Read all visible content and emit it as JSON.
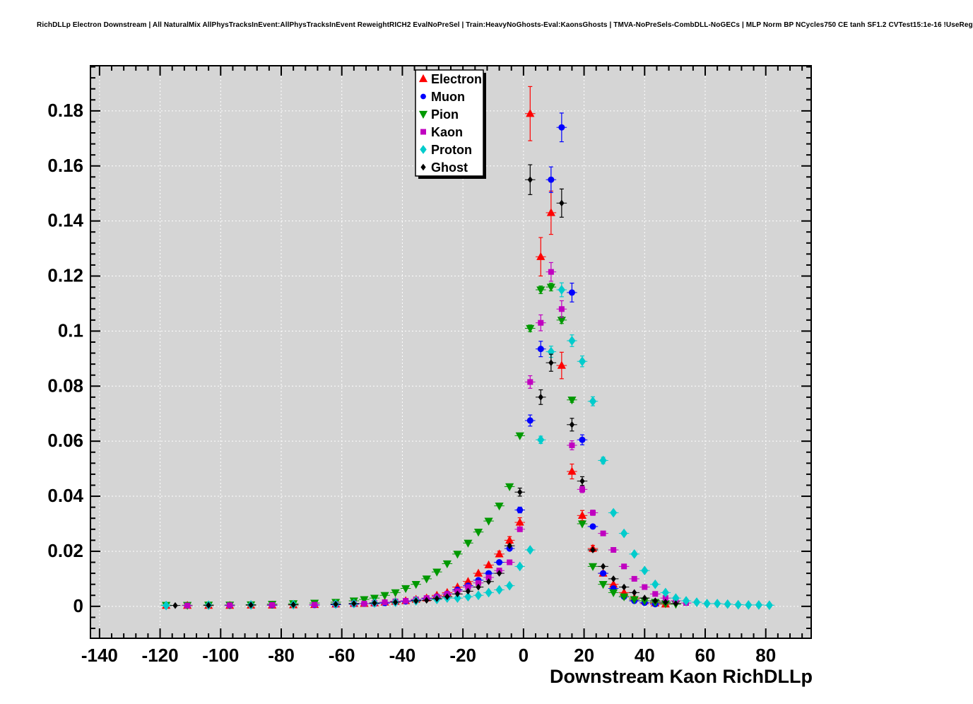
{
  "header": {
    "title": "RichDLLp Electron Downstream | All NaturalMix AllPhysTracksInEvent:AllPhysTracksInEvent ReweightRICH2 EvalNoPreSel | Train:HeavyNoGhosts-Eval:KaonsGhosts | TMVA-NoPreSels-CombDLL-NoGECs | MLP Norm BP NCycles750 CE tanh SF1.2 CVTest15:1e-16 !UseReg"
  },
  "chart_data": {
    "type": "scatter",
    "title": "",
    "xlabel": "Downstream Kaon RichDLLp",
    "ylabel": "",
    "xlim": [
      -143,
      95
    ],
    "ylim": [
      -0.0116,
      0.1964
    ],
    "x_tick_values": [
      -140,
      -120,
      -100,
      -80,
      -60,
      -40,
      -20,
      0,
      20,
      40,
      60,
      80
    ],
    "x_tick_labels": [
      "-140",
      "-120",
      "-100",
      "-80",
      "-60",
      "-40",
      "-20",
      "0",
      "20",
      "40",
      "60",
      "80"
    ],
    "y_tick_values": [
      0,
      0.02,
      0.04,
      0.06,
      0.08,
      0.1,
      0.12,
      0.14,
      0.16,
      0.18
    ],
    "y_tick_labels": [
      "0",
      "0.02",
      "0.04",
      "0.06",
      "0.08",
      "0.1",
      "0.12",
      "0.14",
      "0.16",
      "0.18"
    ],
    "x_minor_step": 4,
    "y_minor_step": 0.004,
    "grid": true,
    "plot_bg": "#d5d5d5",
    "grid_color": "#ffffff",
    "frame_color": "#000000",
    "legend": {
      "position": "top-center"
    },
    "series": [
      {
        "name": "Electron",
        "color": "#ff0000",
        "marker": "triangle-up",
        "marker_size": 5.5,
        "error_frac": 0.055,
        "points": [
          [
            -118,
            0.0003
          ],
          [
            -111,
            0.0003
          ],
          [
            -104,
            0.0003
          ],
          [
            -97,
            0.0003
          ],
          [
            -90,
            0.0004
          ],
          [
            -83,
            0.0004
          ],
          [
            -76,
            0.0005
          ],
          [
            -69,
            0.0006
          ],
          [
            -62,
            0.0008
          ],
          [
            -56,
            0.001
          ],
          [
            -52.6,
            0.001
          ],
          [
            -49.2,
            0.0012
          ],
          [
            -45.8,
            0.0015
          ],
          [
            -42.3,
            0.0018
          ],
          [
            -38.9,
            0.002
          ],
          [
            -35.5,
            0.0025
          ],
          [
            -32,
            0.003
          ],
          [
            -28.6,
            0.004
          ],
          [
            -25.2,
            0.005
          ],
          [
            -21.8,
            0.007
          ],
          [
            -18.3,
            0.009
          ],
          [
            -14.9,
            0.012
          ],
          [
            -11.5,
            0.015
          ],
          [
            -8,
            0.019
          ],
          [
            -4.6,
            0.024
          ],
          [
            -1.2,
            0.0305
          ],
          [
            2.2,
            0.179
          ],
          [
            5.7,
            0.127
          ],
          [
            9.1,
            0.143
          ],
          [
            12.6,
            0.0875
          ],
          [
            16,
            0.049
          ],
          [
            19.4,
            0.033
          ],
          [
            22.9,
            0.021
          ],
          [
            26.3,
            0.012
          ],
          [
            29.7,
            0.008
          ],
          [
            33.2,
            0.005
          ],
          [
            36.6,
            0.003
          ],
          [
            40,
            0.002
          ],
          [
            43.5,
            0.0012
          ],
          [
            46.9,
            0.0008
          ]
        ]
      },
      {
        "name": "Muon",
        "color": "#0000ff",
        "marker": "circle",
        "marker_size": 6.5,
        "error_frac": 0.03,
        "points": [
          [
            -111,
            0.0003
          ],
          [
            -97,
            0.0003
          ],
          [
            -83,
            0.0004
          ],
          [
            -69,
            0.0005
          ],
          [
            -62,
            0.0006
          ],
          [
            -56,
            0.0008
          ],
          [
            -52.6,
            0.001
          ],
          [
            -49.2,
            0.001
          ],
          [
            -45.8,
            0.0012
          ],
          [
            -42.3,
            0.0015
          ],
          [
            -38.9,
            0.0018
          ],
          [
            -35.5,
            0.0022
          ],
          [
            -32,
            0.0028
          ],
          [
            -28.6,
            0.0035
          ],
          [
            -25.2,
            0.0045
          ],
          [
            -21.8,
            0.006
          ],
          [
            -18.3,
            0.0075
          ],
          [
            -14.9,
            0.0095
          ],
          [
            -11.5,
            0.012
          ],
          [
            -8,
            0.016
          ],
          [
            -4.6,
            0.021
          ],
          [
            -1.2,
            0.035
          ],
          [
            2.2,
            0.0675
          ],
          [
            5.7,
            0.0935
          ],
          [
            9.1,
            0.155
          ],
          [
            12.6,
            0.174
          ],
          [
            16,
            0.114
          ],
          [
            19.4,
            0.0605
          ],
          [
            22.9,
            0.029
          ],
          [
            26.3,
            0.012
          ],
          [
            29.7,
            0.0065
          ],
          [
            33.2,
            0.0035
          ],
          [
            36.6,
            0.002
          ],
          [
            40,
            0.0013
          ],
          [
            43.5,
            0.0008
          ]
        ]
      },
      {
        "name": "Pion",
        "color": "#009900",
        "marker": "triangle-down",
        "marker_size": 5.5,
        "error_frac": 0.012,
        "points": [
          [
            -118,
            0.0004
          ],
          [
            -111,
            0.0004
          ],
          [
            -104,
            0.0005
          ],
          [
            -97,
            0.0005
          ],
          [
            -90,
            0.0006
          ],
          [
            -83,
            0.0008
          ],
          [
            -76,
            0.001
          ],
          [
            -69,
            0.0012
          ],
          [
            -62,
            0.0015
          ],
          [
            -56,
            0.002
          ],
          [
            -52.6,
            0.0025
          ],
          [
            -49.2,
            0.003
          ],
          [
            -45.8,
            0.004
          ],
          [
            -42.3,
            0.005
          ],
          [
            -38.9,
            0.0065
          ],
          [
            -35.5,
            0.008
          ],
          [
            -32,
            0.01
          ],
          [
            -28.6,
            0.0125
          ],
          [
            -25.2,
            0.0155
          ],
          [
            -21.8,
            0.019
          ],
          [
            -18.3,
            0.023
          ],
          [
            -14.9,
            0.027
          ],
          [
            -11.5,
            0.031
          ],
          [
            -8,
            0.0365
          ],
          [
            -4.6,
            0.0435
          ],
          [
            -1.2,
            0.062
          ],
          [
            2.2,
            0.101
          ],
          [
            5.7,
            0.115
          ],
          [
            9.1,
            0.116
          ],
          [
            12.6,
            0.104
          ],
          [
            16,
            0.075
          ],
          [
            19.4,
            0.03
          ],
          [
            22.9,
            0.0145
          ],
          [
            26.3,
            0.008
          ],
          [
            29.7,
            0.005
          ],
          [
            33.2,
            0.0035
          ],
          [
            36.6,
            0.0025
          ],
          [
            40,
            0.002
          ],
          [
            43.5,
            0.0015
          ],
          [
            46.9,
            0.001
          ],
          [
            50.3,
            0.0008
          ]
        ]
      },
      {
        "name": "Kaon",
        "color": "#c000c0",
        "marker": "square",
        "marker_size": 5,
        "error_frac": 0.028,
        "points": [
          [
            -111,
            0.0003
          ],
          [
            -97,
            0.0004
          ],
          [
            -83,
            0.0005
          ],
          [
            -69,
            0.0006
          ],
          [
            -62,
            0.0008
          ],
          [
            -56,
            0.001
          ],
          [
            -52.6,
            0.001
          ],
          [
            -49.2,
            0.0012
          ],
          [
            -45.8,
            0.0015
          ],
          [
            -42.3,
            0.0018
          ],
          [
            -38.9,
            0.002
          ],
          [
            -35.5,
            0.0025
          ],
          [
            -32,
            0.003
          ],
          [
            -28.6,
            0.0035
          ],
          [
            -25.2,
            0.0045
          ],
          [
            -21.8,
            0.0055
          ],
          [
            -18.3,
            0.007
          ],
          [
            -14.9,
            0.0085
          ],
          [
            -11.5,
            0.0105
          ],
          [
            -8,
            0.013
          ],
          [
            -4.6,
            0.016
          ],
          [
            -1.2,
            0.028
          ],
          [
            2.2,
            0.0815
          ],
          [
            5.7,
            0.103
          ],
          [
            9.1,
            0.1215
          ],
          [
            12.6,
            0.108
          ],
          [
            16,
            0.0585
          ],
          [
            19.4,
            0.0425
          ],
          [
            22.9,
            0.034
          ],
          [
            26.3,
            0.0265
          ],
          [
            29.7,
            0.0205
          ],
          [
            33.2,
            0.0145
          ],
          [
            36.6,
            0.01
          ],
          [
            40,
            0.007
          ],
          [
            43.5,
            0.0045
          ],
          [
            46.9,
            0.003
          ],
          [
            50.3,
            0.002
          ],
          [
            53.7,
            0.0012
          ]
        ]
      },
      {
        "name": "Proton",
        "color": "#00cccc",
        "marker": "diamond",
        "marker_size": 6,
        "error_frac": 0.022,
        "points": [
          [
            -118,
            0.0003
          ],
          [
            -104,
            0.0004
          ],
          [
            -90,
            0.0005
          ],
          [
            -76,
            0.0006
          ],
          [
            -62,
            0.0008
          ],
          [
            -56,
            0.001
          ],
          [
            -49.2,
            0.0012
          ],
          [
            -42.3,
            0.0015
          ],
          [
            -35.5,
            0.002
          ],
          [
            -28.6,
            0.0025
          ],
          [
            -25.2,
            0.003
          ],
          [
            -21.8,
            0.003
          ],
          [
            -18.3,
            0.0035
          ],
          [
            -14.9,
            0.004
          ],
          [
            -11.5,
            0.005
          ],
          [
            -8,
            0.006
          ],
          [
            -4.6,
            0.0075
          ],
          [
            -1.2,
            0.0145
          ],
          [
            2.2,
            0.0205
          ],
          [
            5.7,
            0.0605
          ],
          [
            9.1,
            0.0925
          ],
          [
            12.6,
            0.115
          ],
          [
            16,
            0.0965
          ],
          [
            19.4,
            0.089
          ],
          [
            22.9,
            0.0745
          ],
          [
            26.3,
            0.053
          ],
          [
            29.7,
            0.034
          ],
          [
            33.2,
            0.0265
          ],
          [
            36.6,
            0.019
          ],
          [
            40,
            0.013
          ],
          [
            43.5,
            0.008
          ],
          [
            46.9,
            0.005
          ],
          [
            50.3,
            0.003
          ],
          [
            53.7,
            0.002
          ],
          [
            57.2,
            0.0015
          ],
          [
            60.6,
            0.001
          ],
          [
            64,
            0.001
          ],
          [
            67.4,
            0.0008
          ],
          [
            70.9,
            0.0006
          ],
          [
            74.3,
            0.0005
          ],
          [
            77.7,
            0.0005
          ],
          [
            81.2,
            0.0004
          ]
        ]
      },
      {
        "name": "Ghost",
        "color": "#000000",
        "marker": "diamond",
        "marker_size": 4,
        "error_frac": 0.035,
        "points": [
          [
            -115,
            0.0003
          ],
          [
            -104,
            0.0004
          ],
          [
            -90,
            0.0005
          ],
          [
            -76,
            0.0006
          ],
          [
            -62,
            0.0008
          ],
          [
            -56,
            0.001
          ],
          [
            -49.2,
            0.0012
          ],
          [
            -42.3,
            0.0015
          ],
          [
            -35.5,
            0.002
          ],
          [
            -32,
            0.0022
          ],
          [
            -28.6,
            0.0028
          ],
          [
            -25.2,
            0.0035
          ],
          [
            -21.8,
            0.0045
          ],
          [
            -18.3,
            0.0055
          ],
          [
            -14.9,
            0.007
          ],
          [
            -11.5,
            0.009
          ],
          [
            -8,
            0.012
          ],
          [
            -4.6,
            0.022
          ],
          [
            -1.2,
            0.0415
          ],
          [
            2.2,
            0.155
          ],
          [
            5.7,
            0.076
          ],
          [
            9.1,
            0.0885
          ],
          [
            12.6,
            0.1465
          ],
          [
            16,
            0.066
          ],
          [
            19.4,
            0.0455
          ],
          [
            22.9,
            0.0205
          ],
          [
            26.3,
            0.0145
          ],
          [
            29.7,
            0.01
          ],
          [
            33.2,
            0.007
          ],
          [
            36.6,
            0.005
          ],
          [
            40,
            0.003
          ],
          [
            43.5,
            0.002
          ],
          [
            46.9,
            0.0015
          ],
          [
            50.3,
            0.001
          ]
        ]
      }
    ]
  }
}
